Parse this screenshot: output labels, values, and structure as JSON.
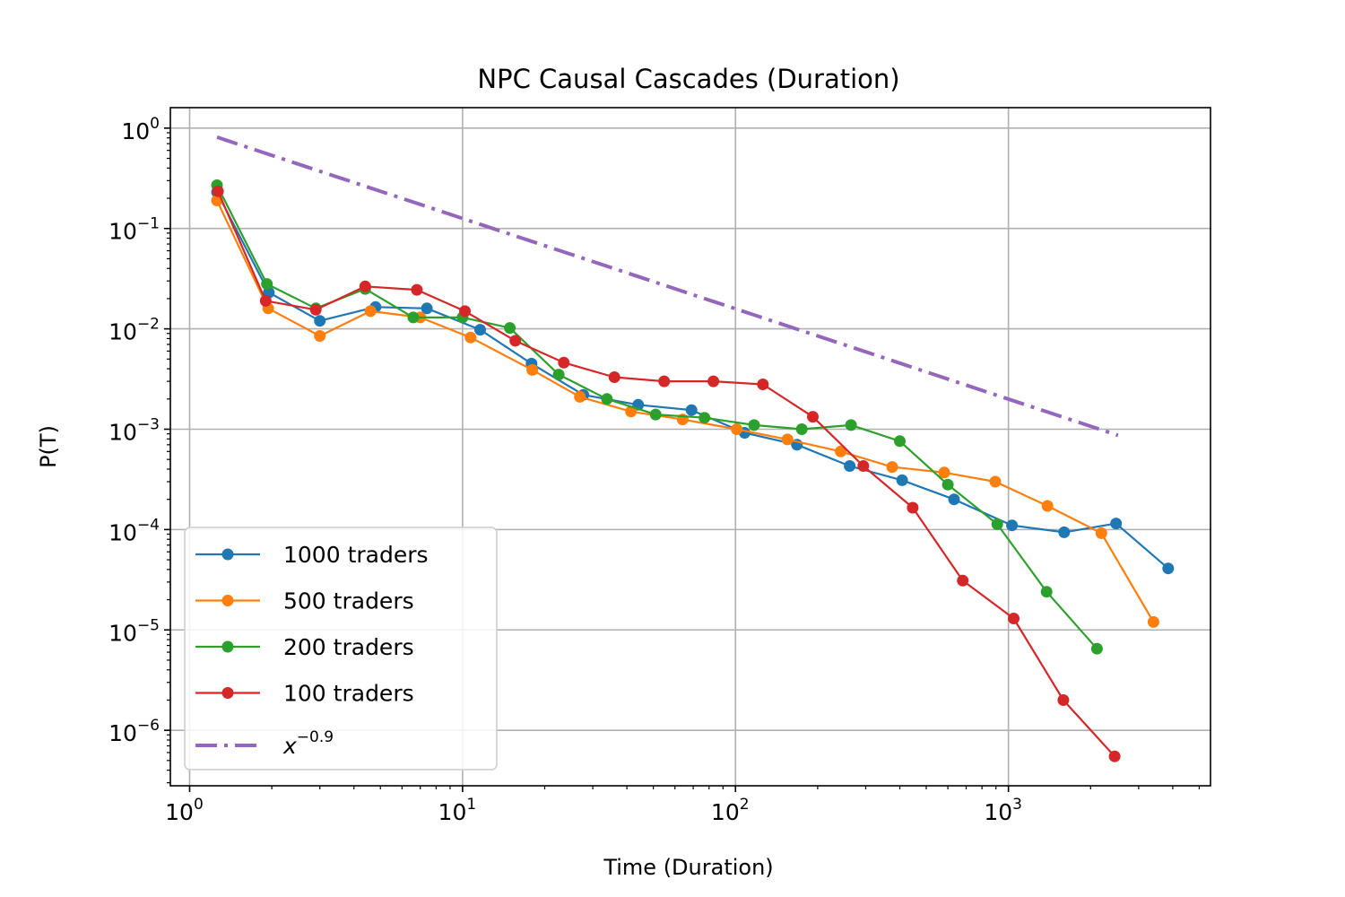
{
  "chart_data": {
    "type": "line",
    "title": "NPC Causal Cascades (Duration)",
    "xlabel": "Time (Duration)",
    "ylabel": "P(T)",
    "xscale": "log",
    "yscale": "log",
    "xlim": [
      0.85,
      5500
    ],
    "ylim": [
      2.8e-07,
      1.6
    ],
    "grid": true,
    "legend_position": "lower-left",
    "x_ticks": [
      {
        "base": "10",
        "exp": "0",
        "value": 1
      },
      {
        "base": "10",
        "exp": "1",
        "value": 10
      },
      {
        "base": "10",
        "exp": "2",
        "value": 100
      },
      {
        "base": "10",
        "exp": "3",
        "value": 1000
      }
    ],
    "y_ticks": [
      {
        "base": "10",
        "exp": "0",
        "value": 1
      },
      {
        "base": "10",
        "exp": "−1",
        "value": 0.1
      },
      {
        "base": "10",
        "exp": "−2",
        "value": 0.01
      },
      {
        "base": "10",
        "exp": "−3",
        "value": 0.001
      },
      {
        "base": "10",
        "exp": "−4",
        "value": 0.0001
      },
      {
        "base": "10",
        "exp": "−5",
        "value": 1e-05
      },
      {
        "base": "10",
        "exp": "−6",
        "value": 1e-06
      }
    ],
    "series": [
      {
        "name": "1000 traders",
        "color": "#1f77b4",
        "style": "line-marker",
        "x": [
          1.26,
          1.95,
          3.0,
          4.8,
          7.4,
          11.6,
          17.9,
          27.7,
          44.0,
          69.0,
          108,
          168,
          262,
          408,
          632,
          1030,
          1600,
          2480,
          3850
        ],
        "y": [
          0.23,
          0.023,
          0.012,
          0.0165,
          0.016,
          0.0098,
          0.0045,
          0.0022,
          0.00175,
          0.00155,
          0.00092,
          0.0007,
          0.00043,
          0.00031,
          0.0002,
          0.00011,
          9.4e-05,
          0.000115,
          4.1e-05
        ]
      },
      {
        "name": "500 traders",
        "color": "#ff7f0e",
        "style": "line-marker",
        "x": [
          1.26,
          1.94,
          3.0,
          4.6,
          7.0,
          10.7,
          18.0,
          26.9,
          41.4,
          64.0,
          101,
          155,
          243,
          375,
          582,
          895,
          1390,
          2190,
          3400
        ],
        "y": [
          0.19,
          0.016,
          0.0085,
          0.015,
          0.013,
          0.0082,
          0.0039,
          0.0021,
          0.0015,
          0.00125,
          0.001,
          0.00079,
          0.0006,
          0.00042,
          0.00037,
          0.0003,
          0.000172,
          9.2e-05,
          1.2e-05
        ]
      },
      {
        "name": "200 traders",
        "color": "#2ca02c",
        "style": "line-marker",
        "x": [
          1.26,
          1.92,
          2.9,
          4.4,
          6.6,
          10.0,
          14.9,
          22.5,
          33.8,
          51.0,
          77.0,
          117,
          175,
          265,
          400,
          600,
          910,
          1380,
          2110
        ],
        "y": [
          0.27,
          0.028,
          0.016,
          0.025,
          0.013,
          0.013,
          0.0102,
          0.0035,
          0.002,
          0.0014,
          0.0013,
          0.0011,
          0.001,
          0.0011,
          0.00076,
          0.00028,
          0.000113,
          2.4e-05,
          6.5e-06
        ]
      },
      {
        "name": "100 traders",
        "color": "#d62728",
        "style": "line-marker",
        "x": [
          1.27,
          1.9,
          2.9,
          4.4,
          6.8,
          10.2,
          15.6,
          23.5,
          36.0,
          54.8,
          83.0,
          126,
          192,
          294,
          446,
          680,
          1045,
          1590,
          2450
        ],
        "y": [
          0.235,
          0.019,
          0.0155,
          0.0265,
          0.0245,
          0.015,
          0.0076,
          0.0046,
          0.0033,
          0.003,
          0.003,
          0.0028,
          0.00133,
          0.00043,
          0.000165,
          3.1e-05,
          1.3e-05,
          2e-06,
          5.5e-07
        ]
      },
      {
        "name": "x^-0.9",
        "name_base": "x",
        "name_exp": "−0.9",
        "color": "#9467bd",
        "style": "dashdot",
        "coefficient": 1.0,
        "exponent": -0.9,
        "x_range": [
          1.26,
          2520
        ]
      }
    ]
  }
}
